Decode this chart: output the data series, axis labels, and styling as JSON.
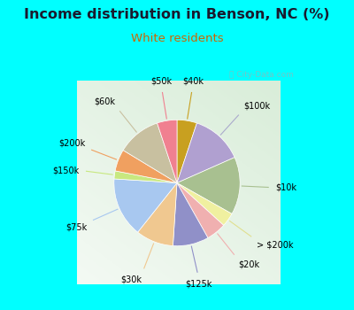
{
  "title": "Income distribution in Benson, NC (%)",
  "subtitle": "White residents",
  "bg_outer": "#00ffff",
  "title_color": "#1a1a2e",
  "subtitle_color": "#cc6600",
  "labels": [
    "$40k",
    "$100k",
    "$10k",
    "> $200k",
    "$20k",
    "$125k",
    "$30k",
    "$75k",
    "$150k",
    "$200k",
    "$60k",
    "$50k"
  ],
  "values": [
    5.0,
    13.0,
    14.5,
    3.5,
    5.0,
    9.0,
    9.5,
    15.0,
    2.0,
    5.5,
    11.0,
    5.0
  ],
  "colors": [
    "#c8a020",
    "#b0a0d0",
    "#a8c090",
    "#f0f0a0",
    "#f0b0b0",
    "#9090c8",
    "#f0c890",
    "#a8c8f0",
    "#c8e880",
    "#f0a060",
    "#c8c0a0",
    "#f08090"
  ],
  "line_colors": [
    "#c8a020",
    "#aaaacc",
    "#a8c090",
    "#e0e090",
    "#f0b0b0",
    "#9090c8",
    "#f0c890",
    "#a8c8f0",
    "#c8e880",
    "#f0a060",
    "#c8c0a0",
    "#f08090"
  ],
  "startangle": 90,
  "figsize": [
    4.0,
    3.5
  ],
  "dpi": 100
}
